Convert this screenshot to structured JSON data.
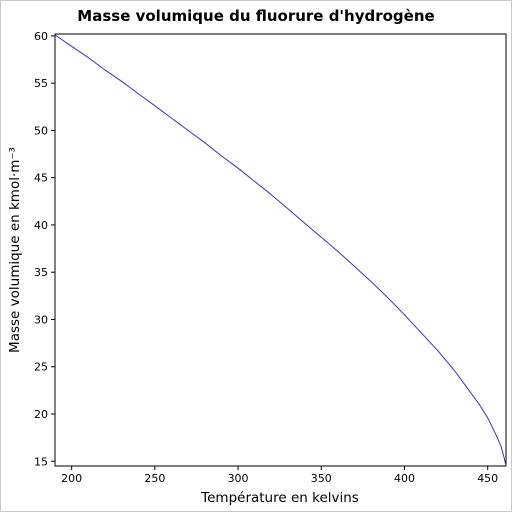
{
  "chart_data": {
    "type": "line",
    "title": "Masse volumique du fluorure d'hydrogène",
    "xlabel": "Température en kelvins",
    "ylabel": "Masse volumique en kmol·m⁻³",
    "xlim": [
      190,
      461
    ],
    "ylim": [
      14.5,
      60.2
    ],
    "x_ticks": [
      200,
      250,
      300,
      350,
      400,
      450
    ],
    "y_ticks": [
      15,
      20,
      25,
      30,
      35,
      40,
      45,
      50,
      55,
      60
    ],
    "grid": false,
    "series": [
      {
        "color": "#3333cc",
        "x": [
          190,
          200,
          210,
          220,
          230,
          240,
          250,
          260,
          270,
          280,
          290,
          300,
          310,
          320,
          330,
          340,
          350,
          360,
          370,
          380,
          390,
          400,
          410,
          420,
          430,
          440,
          445,
          450,
          455,
          458,
          460,
          461
        ],
        "y": [
          60.1,
          58.9,
          57.7,
          56.4,
          55.2,
          53.9,
          52.6,
          51.3,
          50.0,
          48.7,
          47.3,
          46.0,
          44.6,
          43.2,
          41.7,
          40.2,
          38.7,
          37.2,
          35.6,
          34.0,
          32.3,
          30.5,
          28.6,
          26.7,
          24.6,
          22.2,
          21.0,
          19.6,
          17.8,
          16.6,
          15.3,
          14.5
        ]
      }
    ]
  }
}
